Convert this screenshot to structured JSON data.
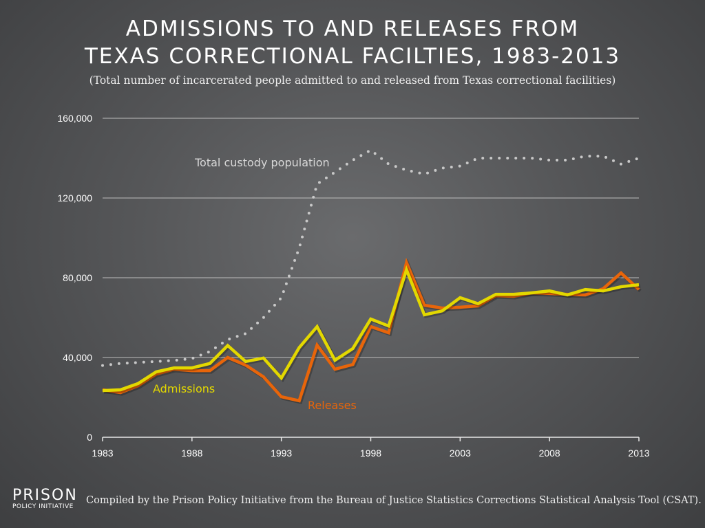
{
  "title_line1": "ADMISSIONS TO AND RELEASES FROM",
  "title_line2": "TEXAS CORRECTIONAL FACILTIES, 1983-2013",
  "subtitle": "(Total number of incarcerated people admitted to and released from Texas correctional facilities)",
  "footer": "Compiled by the Prison Policy Initiative from the Bureau of Justice Statistics Corrections Statistical Analysis Tool (CSAT).",
  "logo": {
    "line1": "PRISON",
    "line2": "POLICY INITIATIVE"
  },
  "chart_data": {
    "type": "line",
    "xlim": [
      1983,
      2013
    ],
    "ylim": [
      0,
      160000
    ],
    "grid": true,
    "x_ticks": [
      "1983",
      "1988",
      "1993",
      "1998",
      "2003",
      "2008",
      "2013"
    ],
    "y_ticks": [
      "0",
      "40,000",
      "80,000",
      "120,000",
      "160,000"
    ],
    "x": [
      1983,
      1984,
      1985,
      1986,
      1987,
      1988,
      1989,
      1990,
      1991,
      1992,
      1993,
      1994,
      1995,
      1996,
      1997,
      1998,
      1999,
      2000,
      2001,
      2002,
      2003,
      2004,
      2005,
      2006,
      2007,
      2008,
      2009,
      2010,
      2011,
      2012,
      2013
    ],
    "series": [
      {
        "name": "Total custody population",
        "color": "#c8c8c8",
        "style": "dotted",
        "values": [
          36000,
          37000,
          37500,
          38000,
          38500,
          39500,
          43000,
          49000,
          52000,
          60000,
          70000,
          95000,
          127000,
          133000,
          139000,
          144000,
          137000,
          134000,
          132000,
          135000,
          136000,
          140000,
          140000,
          140000,
          140000,
          139000,
          139000,
          141000,
          141000,
          137000,
          140000
        ]
      },
      {
        "name": "Releases",
        "color": "#e8650a",
        "style": "solid",
        "values": [
          23800,
          22400,
          25900,
          31700,
          34100,
          33400,
          33400,
          40000,
          36200,
          30300,
          20300,
          18300,
          46200,
          34100,
          36500,
          55500,
          52400,
          87600,
          66200,
          64800,
          65200,
          65900,
          71000,
          70700,
          72400,
          72100,
          71700,
          71400,
          74500,
          82400,
          74100
        ]
      },
      {
        "name": "Admissions",
        "color": "#e3d800",
        "style": "solid",
        "values": [
          23400,
          23800,
          27000,
          32800,
          34800,
          34800,
          37000,
          46000,
          38000,
          39700,
          29700,
          45000,
          55500,
          38600,
          44500,
          59300,
          55800,
          84000,
          61400,
          63400,
          70000,
          67000,
          71700,
          71700,
          72400,
          73400,
          71400,
          74100,
          73400,
          75500,
          76500
        ]
      }
    ]
  }
}
